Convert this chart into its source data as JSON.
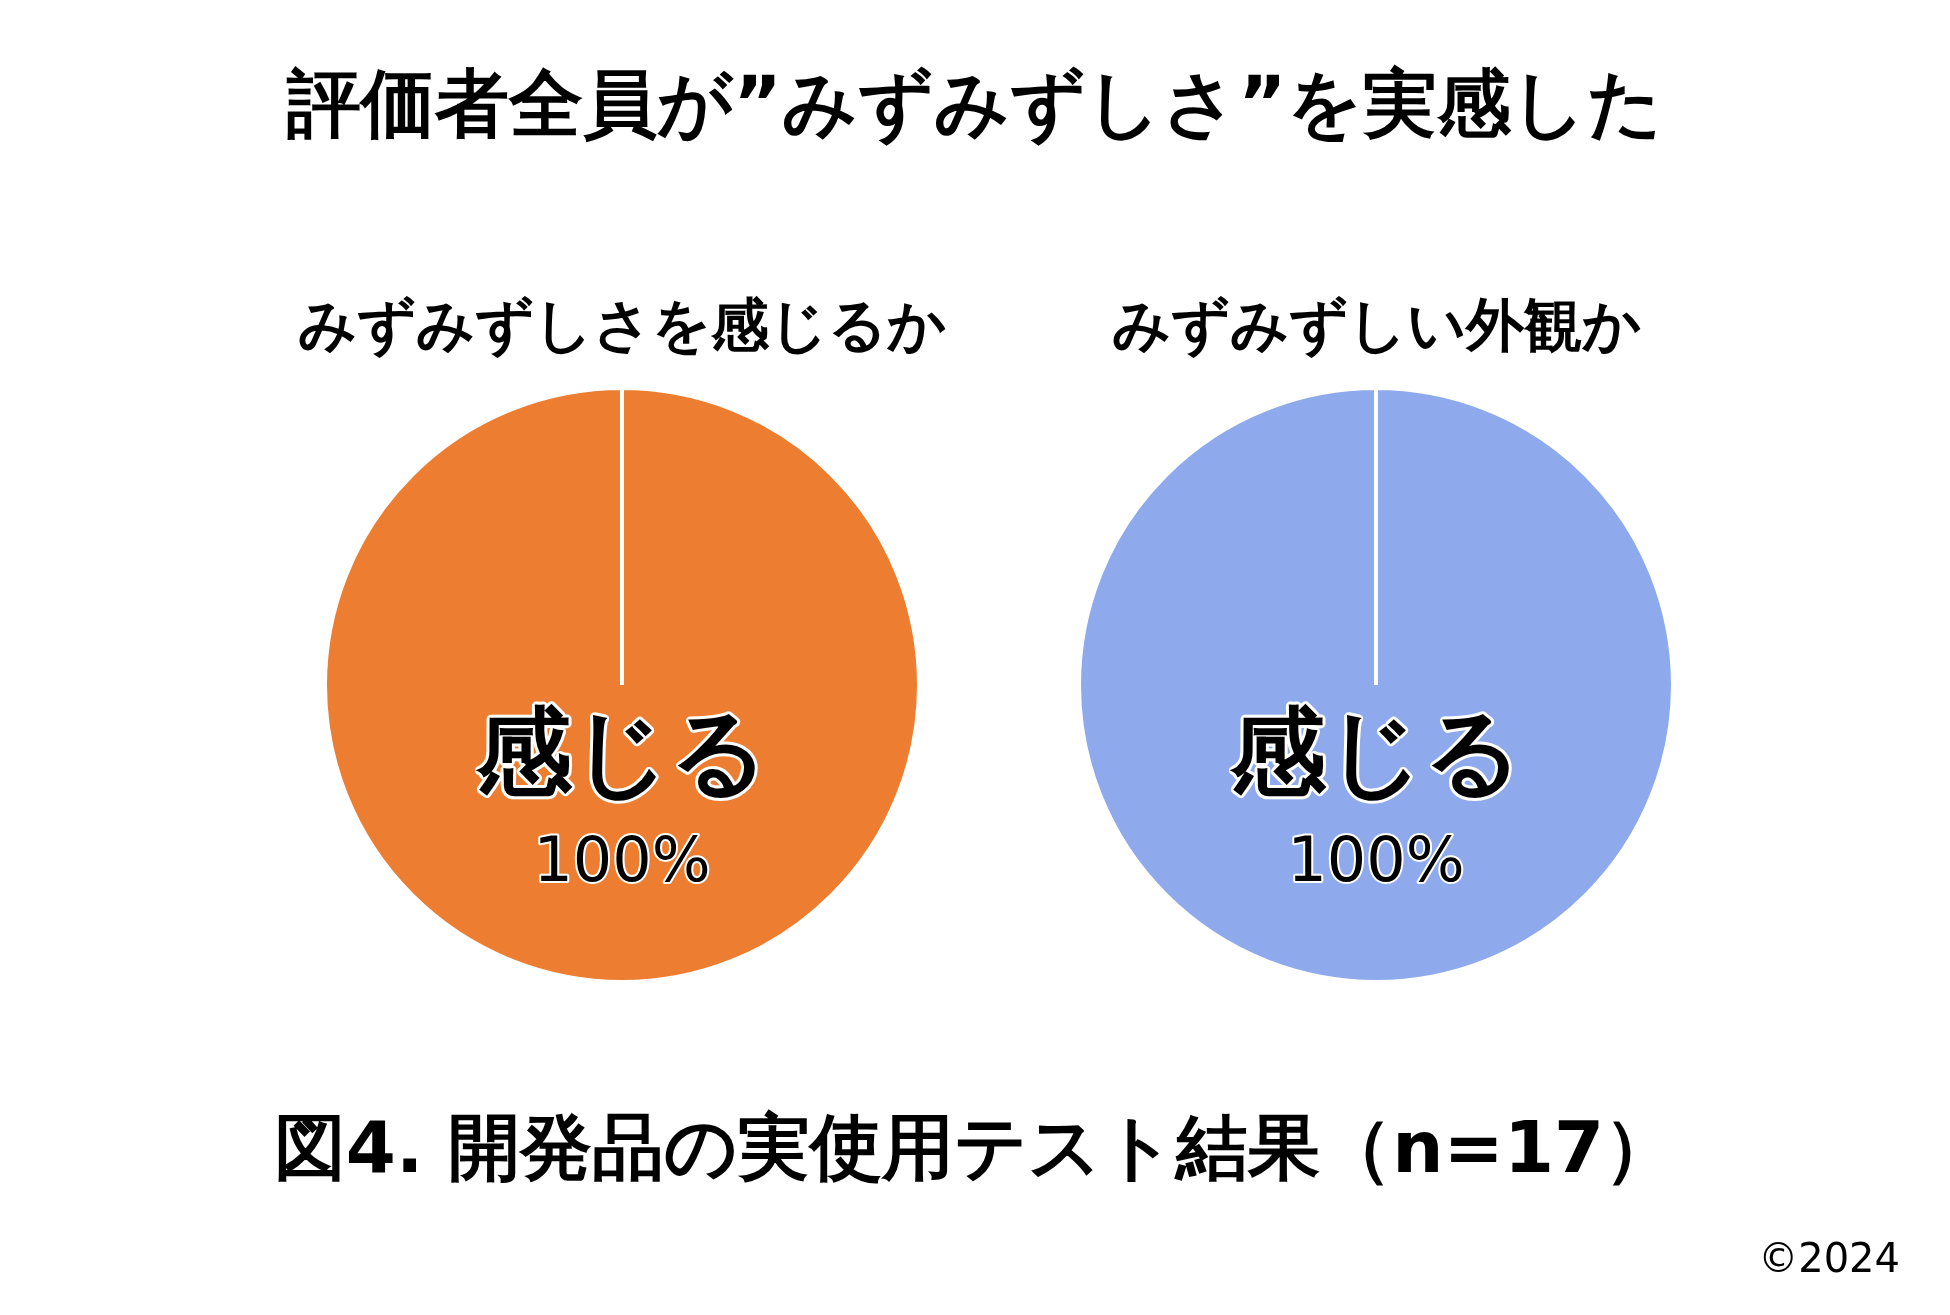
{
  "chart_data": [
    {
      "type": "pie",
      "title": "みずみずしさを感じるか",
      "categories": [
        "感じる"
      ],
      "values": [
        100
      ],
      "colors": [
        "#ed7d31"
      ],
      "value_labels": [
        "100%"
      ],
      "annotations": [
        "評価者全員が”みずみずしさ”を実感した"
      ]
    },
    {
      "type": "pie",
      "title": "みずみずしい外観か",
      "categories": [
        "感じる"
      ],
      "values": [
        100
      ],
      "colors": [
        "#8eaaec"
      ],
      "value_labels": [
        "100%"
      ],
      "annotations": [
        "図4. 開発品の実使用テスト結果（n=17）",
        "©2024"
      ]
    }
  ]
}
